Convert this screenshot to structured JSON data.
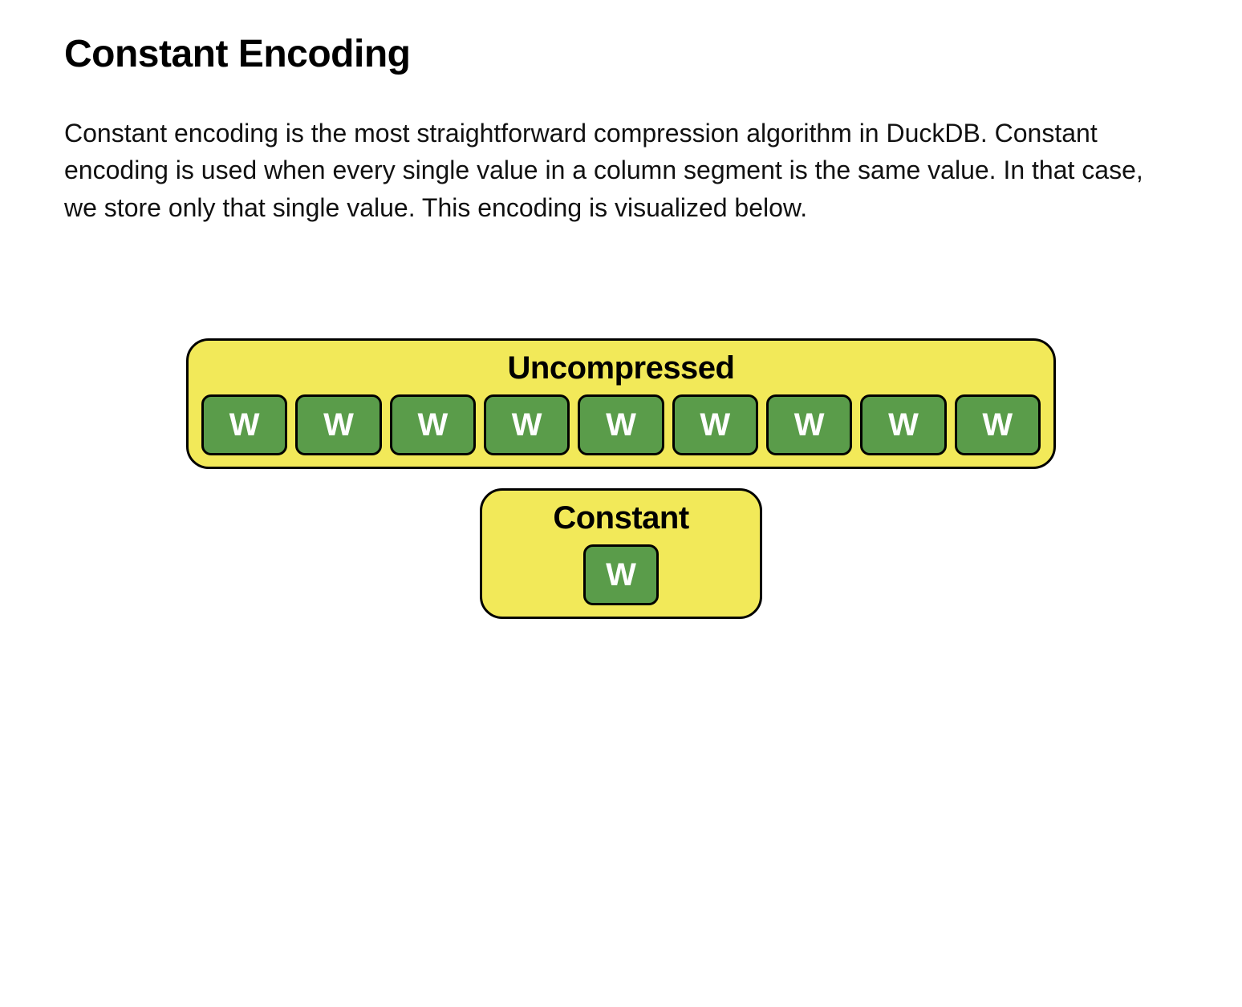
{
  "heading": "Constant Encoding",
  "body": "Constant encoding is the most straightforward compression algorithm in DuckDB. Constant encoding is used when every single value in a column segment is the same value. In that case, we store only that single value. This encoding is visualized below.",
  "diagram": {
    "background_color": "#ffffff",
    "panel_bg": "#f2e959",
    "panel_border": "#000000",
    "panel_border_radius": 28,
    "cell_bg": "#5a9c4a",
    "cell_border": "#000000",
    "cell_text_color": "#ffffff",
    "cell_border_radius": 12,
    "uncompressed": {
      "title": "Uncompressed",
      "cells": [
        "W",
        "W",
        "W",
        "W",
        "W",
        "W",
        "W",
        "W",
        "W"
      ]
    },
    "constant": {
      "title": "Constant",
      "cells": [
        "W"
      ]
    },
    "title_fontsize": 40,
    "cell_fontsize": 40,
    "heading_fontsize": 48,
    "body_fontsize": 32
  }
}
